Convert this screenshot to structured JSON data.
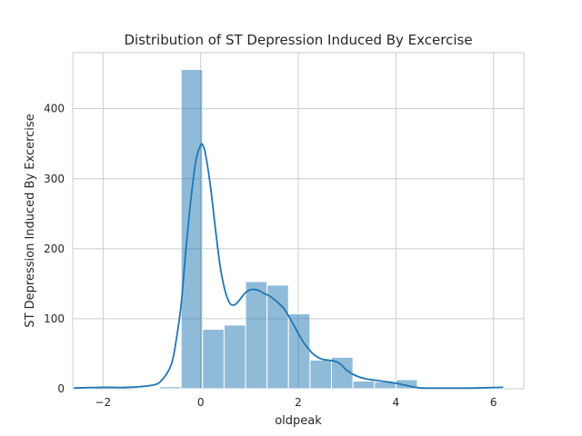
{
  "chart_data": {
    "type": "bar",
    "title": "Distribution of ST Depression Induced By Excercise",
    "xlabel": "oldpeak",
    "ylabel": "ST Depression Induced By Excercise",
    "xlim": [
      -2.62,
      6.62
    ],
    "ylim": [
      0,
      480
    ],
    "xticks": [
      -2,
      0,
      2,
      4,
      6
    ],
    "xtick_labels": [
      "−2",
      "0",
      "2",
      "4",
      "6"
    ],
    "yticks": [
      0,
      100,
      200,
      300,
      400
    ],
    "ytick_labels": [
      "0",
      "100",
      "200",
      "300",
      "400"
    ],
    "grid": true,
    "legend": "none",
    "bar_color": "#1f77b4",
    "bar_opacity": 0.5,
    "kde_color": "#1f77b4",
    "bins": [
      {
        "x0": -2.6,
        "x1": -2.16,
        "count": 1
      },
      {
        "x0": -2.16,
        "x1": -1.72,
        "count": 0
      },
      {
        "x0": -1.72,
        "x1": -1.28,
        "count": 0
      },
      {
        "x0": -1.28,
        "x1": -0.84,
        "count": 1
      },
      {
        "x0": -0.84,
        "x1": -0.4,
        "count": 3
      },
      {
        "x0": -0.4,
        "x1": 0.04,
        "count": 456
      },
      {
        "x0": 0.04,
        "x1": 0.48,
        "count": 85
      },
      {
        "x0": 0.48,
        "x1": 0.92,
        "count": 91
      },
      {
        "x0": 0.92,
        "x1": 1.36,
        "count": 153
      },
      {
        "x0": 1.36,
        "x1": 1.8,
        "count": 148
      },
      {
        "x0": 1.8,
        "x1": 2.24,
        "count": 107
      },
      {
        "x0": 2.24,
        "x1": 2.68,
        "count": 41
      },
      {
        "x0": 2.68,
        "x1": 3.12,
        "count": 45
      },
      {
        "x0": 3.12,
        "x1": 3.56,
        "count": 11
      },
      {
        "x0": 3.56,
        "x1": 4.0,
        "count": 10
      },
      {
        "x0": 4.0,
        "x1": 4.44,
        "count": 13
      },
      {
        "x0": 4.44,
        "x1": 4.88,
        "count": 0
      },
      {
        "x0": 4.88,
        "x1": 5.32,
        "count": 0
      },
      {
        "x0": 5.32,
        "x1": 5.76,
        "count": 0
      },
      {
        "x0": 5.76,
        "x1": 6.2,
        "count": 1
      }
    ],
    "kde": {
      "x": [
        -2.6,
        -2.0,
        -1.5,
        -1.0,
        -0.8,
        -0.6,
        -0.5,
        -0.4,
        -0.3,
        -0.2,
        -0.1,
        0.0,
        0.05,
        0.1,
        0.2,
        0.3,
        0.4,
        0.5,
        0.6,
        0.7,
        0.8,
        0.9,
        1.0,
        1.1,
        1.2,
        1.3,
        1.4,
        1.5,
        1.6,
        1.7,
        1.8,
        1.9,
        2.0,
        2.1,
        2.2,
        2.3,
        2.4,
        2.5,
        2.6,
        2.7,
        2.8,
        2.9,
        3.0,
        3.2,
        3.4,
        3.6,
        3.8,
        4.0,
        4.2,
        4.4,
        4.6,
        5.0,
        5.5,
        6.2
      ],
      "y": [
        1,
        2,
        2,
        5,
        12,
        35,
        70,
        120,
        200,
        270,
        325,
        348,
        347,
        335,
        290,
        230,
        175,
        140,
        122,
        120,
        127,
        136,
        141,
        142,
        140,
        136,
        133,
        128,
        122,
        115,
        104,
        92,
        79,
        67,
        58,
        50,
        45,
        42,
        41,
        40,
        38,
        33,
        26,
        18,
        14,
        12,
        10,
        8,
        5,
        2,
        1,
        1,
        1,
        2
      ]
    }
  }
}
